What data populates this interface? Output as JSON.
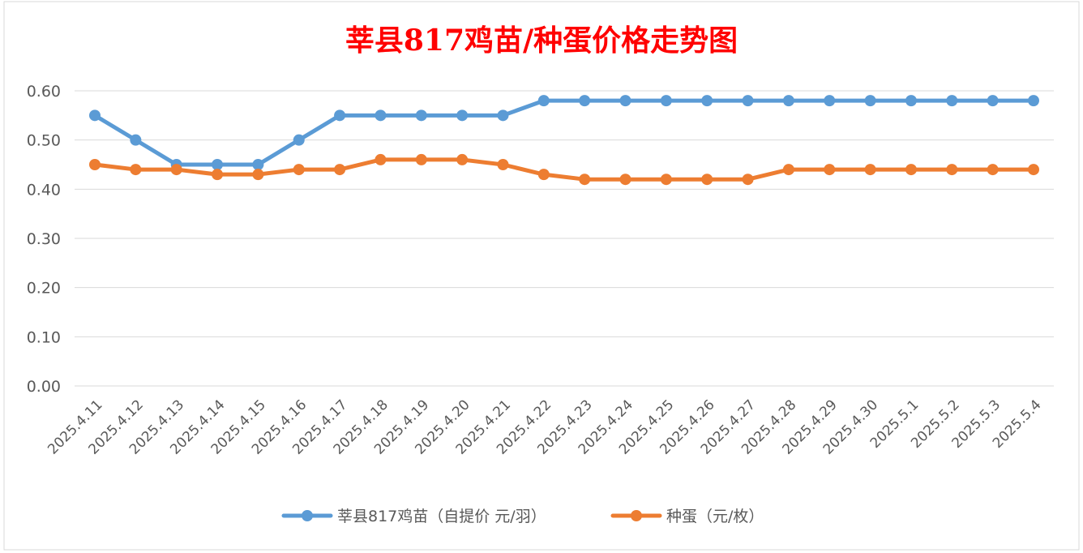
{
  "chart_data": {
    "type": "line",
    "title": "莘县817鸡苗/种蛋价格走势图",
    "xlabel": "",
    "ylabel": "",
    "ylim": [
      0,
      0.6
    ],
    "yticks": [
      "0.00",
      "0.10",
      "0.20",
      "0.30",
      "0.40",
      "0.50",
      "0.60"
    ],
    "grid": true,
    "legend_position": "bottom",
    "categories": [
      "2025.4.11",
      "2025.4.12",
      "2025.4.13",
      "2025.4.14",
      "2025.4.15",
      "2025.4.16",
      "2025.4.17",
      "2025.4.18",
      "2025.4.19",
      "2025.4.20",
      "2025.4.21",
      "2025.4.22",
      "2025.4.23",
      "2025.4.24",
      "2025.4.25",
      "2025.4.26",
      "2025.4.27",
      "2025.4.28",
      "2025.4.29",
      "2025.4.30",
      "2025.5.1",
      "2025.5.2",
      "2025.5.3",
      "2025.5.4"
    ],
    "series": [
      {
        "name": "莘县817鸡苗（自提价 元/羽）",
        "color": "#5b9bd5",
        "values": [
          0.55,
          0.5,
          0.45,
          0.45,
          0.45,
          0.5,
          0.55,
          0.55,
          0.55,
          0.55,
          0.55,
          0.58,
          0.58,
          0.58,
          0.58,
          0.58,
          0.58,
          0.58,
          0.58,
          0.58,
          0.58,
          0.58,
          0.58,
          0.58
        ]
      },
      {
        "name": "种蛋（元/枚）",
        "color": "#ed7d31",
        "values": [
          0.45,
          0.44,
          0.44,
          0.43,
          0.43,
          0.44,
          0.44,
          0.46,
          0.46,
          0.46,
          0.45,
          0.43,
          0.42,
          0.42,
          0.42,
          0.42,
          0.42,
          0.44,
          0.44,
          0.44,
          0.44,
          0.44,
          0.44,
          0.44
        ]
      }
    ]
  }
}
